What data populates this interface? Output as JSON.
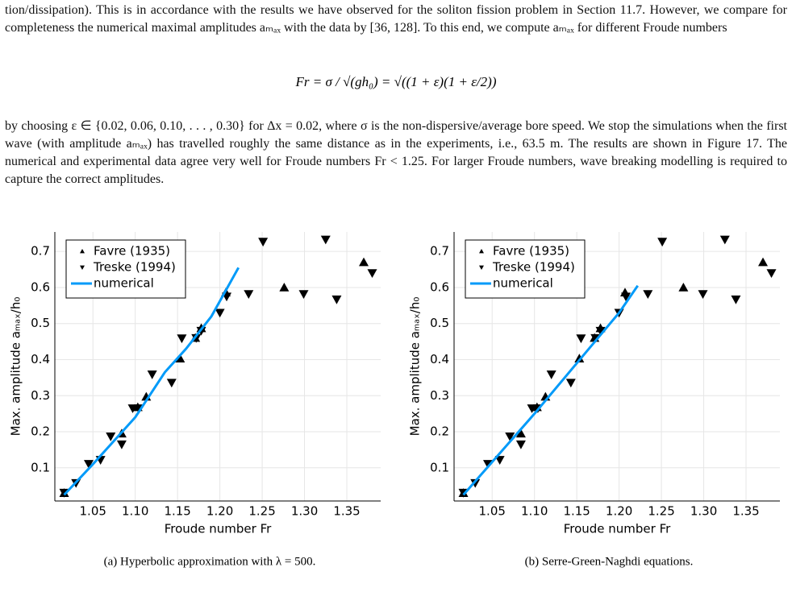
{
  "paragraphs": [
    "tion/dissipation). This is in accordance with the results we have observed for the soliton fission problem in Section 11.7. However, we compare for completeness the numerical maximal amplitudes aₘₐₓ with the data by [36, 128]. To this end, we compute aₘₐₓ for different Froude numbers",
    "by choosing ε ∈ {0.02, 0.06, 0.10, . . . , 0.30} for Δx = 0.02, where σ is the non-dispersive/average bore speed. We stop the simulations when the first wave (with amplitude aₘₐₓ) has travelled roughly the same distance as in the experiments, i.e., 63.5 m. The results are shown in Figure 17. The numerical and experimental data agree very well for Froude numbers Fr < 1.25. For larger Froude numbers, wave breaking modelling is required to capture the correct amplitudes."
  ],
  "equation": "Fr = σ / √(gh₀) = √((1 + ε)(1 + ε/2))",
  "chart_data": [
    {
      "type": "scatter",
      "caption": "(a) Hyperbolic approximation with λ = 500.",
      "x_label": "Froude number Fr",
      "y_label": "Max. amplitude aₘₐₓ/h₀",
      "xlim": [
        1.005,
        1.39
      ],
      "ylim": [
        0.008,
        0.754
      ],
      "xticks": [
        {
          "value": 1.05,
          "label": "1.05"
        },
        {
          "value": 1.1,
          "label": "1.10"
        },
        1.15,
        {
          "value": 1.2,
          "label": "1.20"
        },
        1.25,
        {
          "value": 1.3,
          "label": "1.30"
        },
        1.35
      ],
      "yticks": [
        0.1,
        0.2,
        0.3,
        0.4,
        0.5,
        0.6,
        0.7
      ],
      "grid": true,
      "legend": "top-left",
      "series": [
        {
          "name": "Favre (1935)",
          "color": "#000000",
          "marker": "triangle-up",
          "x": [
            1.016,
            1.084,
            1.103,
            1.113,
            1.153,
            1.171,
            1.178,
            1.207,
            1.276,
            1.37
          ],
          "values": [
            0.03,
            0.195,
            0.268,
            0.297,
            0.403,
            0.46,
            0.487,
            0.586,
            0.6,
            0.67
          ]
        },
        {
          "name": "Treske (1994)",
          "color": "#000000",
          "marker": "triangle-down",
          "x": [
            1.016,
            1.03,
            1.045,
            1.059,
            1.071,
            1.084,
            1.097,
            1.104,
            1.12,
            1.143,
            1.155,
            1.172,
            1.178,
            1.2,
            1.208,
            1.234,
            1.251,
            1.299,
            1.338,
            1.325,
            1.38
          ],
          "values": [
            0.031,
            0.058,
            0.111,
            0.122,
            0.187,
            0.165,
            0.265,
            0.265,
            0.359,
            0.336,
            0.459,
            0.46,
            0.48,
            0.53,
            0.575,
            0.582,
            0.727,
            0.582,
            0.567,
            0.733,
            0.64
          ]
        },
        {
          "name": "numerical",
          "color": "#009af9",
          "marker": "line",
          "x": [
            1.016,
            1.05,
            1.1,
            1.135,
            1.16,
            1.19,
            1.222
          ],
          "values": [
            0.025,
            0.11,
            0.24,
            0.365,
            0.43,
            0.52,
            0.655
          ]
        }
      ]
    },
    {
      "type": "scatter",
      "caption": "(b) Serre-Green-Naghdi equations.",
      "x_label": "Froude number Fr",
      "y_label": "Max. amplitude aₘₐₓ/h₀",
      "xlim": [
        1.005,
        1.39
      ],
      "ylim": [
        0.008,
        0.754
      ],
      "xticks": [
        {
          "value": 1.05,
          "label": "1.05"
        },
        {
          "value": 1.1,
          "label": "1.10"
        },
        1.15,
        {
          "value": 1.2,
          "label": "1.20"
        },
        1.25,
        {
          "value": 1.3,
          "label": "1.30"
        },
        1.35
      ],
      "yticks": [
        0.1,
        0.2,
        0.3,
        0.4,
        0.5,
        0.6,
        0.7
      ],
      "grid": true,
      "legend": "top-left",
      "series": [
        {
          "name": "Favre (1935)",
          "color": "#000000",
          "marker": "triangle-up",
          "x": [
            1.016,
            1.084,
            1.103,
            1.113,
            1.153,
            1.171,
            1.178,
            1.207,
            1.276,
            1.37
          ],
          "values": [
            0.03,
            0.195,
            0.268,
            0.297,
            0.403,
            0.46,
            0.487,
            0.586,
            0.6,
            0.67
          ]
        },
        {
          "name": "Treske (1994)",
          "color": "#000000",
          "marker": "triangle-down",
          "x": [
            1.016,
            1.03,
            1.045,
            1.059,
            1.071,
            1.084,
            1.097,
            1.104,
            1.12,
            1.143,
            1.155,
            1.172,
            1.178,
            1.2,
            1.208,
            1.234,
            1.251,
            1.299,
            1.338,
            1.325,
            1.38
          ],
          "values": [
            0.031,
            0.058,
            0.111,
            0.122,
            0.187,
            0.165,
            0.265,
            0.265,
            0.359,
            0.336,
            0.459,
            0.46,
            0.48,
            0.53,
            0.575,
            0.582,
            0.727,
            0.582,
            0.567,
            0.733,
            0.64
          ]
        },
        {
          "name": "numerical",
          "color": "#009af9",
          "marker": "line",
          "x": [
            1.016,
            1.1,
            1.15,
            1.2,
            1.222
          ],
          "values": [
            0.025,
            0.25,
            0.39,
            0.53,
            0.605
          ]
        }
      ]
    }
  ]
}
